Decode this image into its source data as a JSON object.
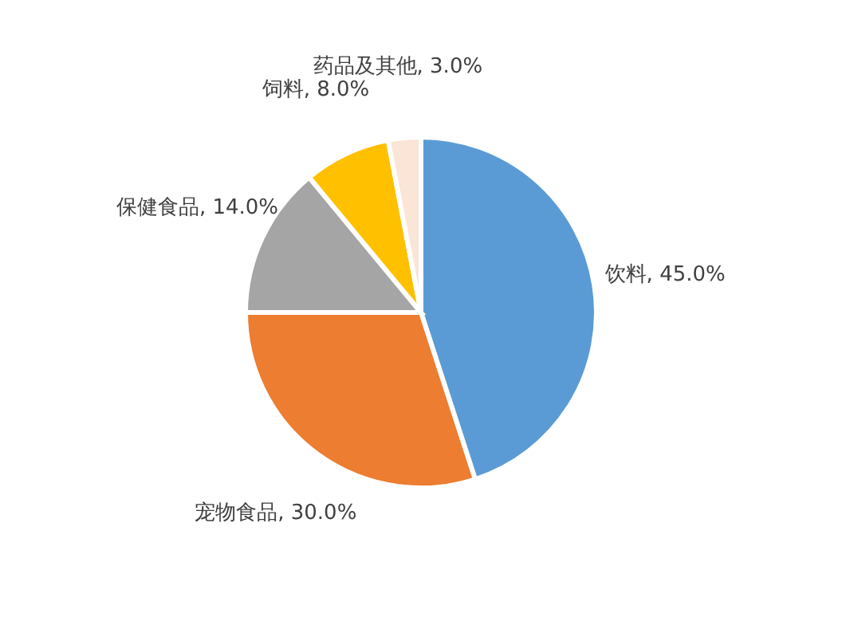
{
  "chart_data": {
    "type": "pie",
    "categories": [
      "饮料",
      "宠物食品",
      "保健食品",
      "饲料",
      "药品及其他"
    ],
    "values": [
      45,
      30,
      14,
      8,
      3
    ],
    "value_labels": [
      "45.0%",
      "30.0%",
      "14.0%",
      "8.0%",
      "3.0%"
    ],
    "colors": [
      "#5b9bd5",
      "#ed7d31",
      "#a5a5a5",
      "#ffc000",
      "#fbe5d6"
    ]
  }
}
